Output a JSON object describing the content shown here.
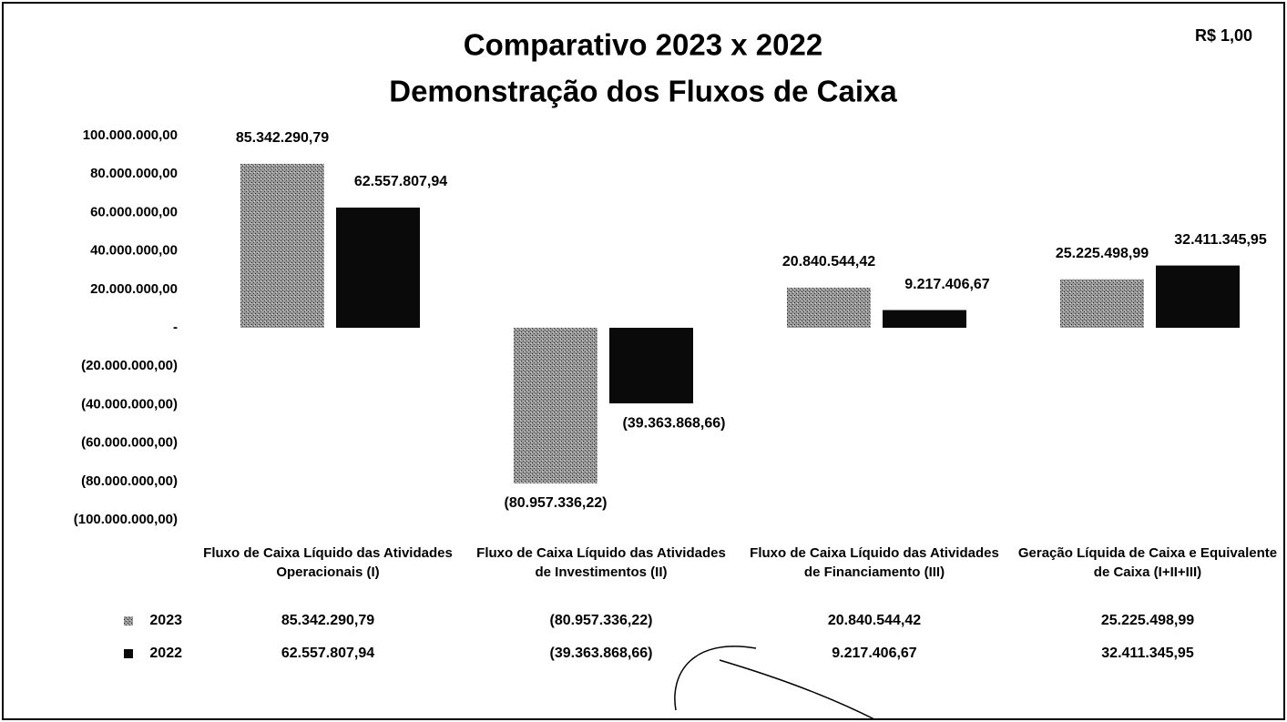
{
  "chart_data": {
    "type": "bar",
    "title": "Comparativo 2023 x 2022",
    "subtitle": "Demonstração dos Fluxos de Caixa",
    "unit_note": "R$ 1,00",
    "categories": [
      "Fluxo de Caixa Líquido das Atividades Operacionais (I)",
      "Fluxo de Caixa Líquido das Atividades de Investimentos (II)",
      "Fluxo de Caixa Líquido das Atividades de Financiamento (III)",
      "Geração Líquida de Caixa e Equivalente de Caixa (I+II+III)"
    ],
    "series": [
      {
        "name": "2023",
        "color": "#7a7a7a",
        "values": [
          85342290.79,
          -80957336.22,
          20840544.42,
          25225498.99
        ],
        "value_labels": [
          "85.342.290,79",
          "(80.957.336,22)",
          "20.840.544,42",
          "25.225.498,99"
        ]
      },
      {
        "name": "2022",
        "color": "#0a0a0a",
        "values": [
          62557807.94,
          -39363868.66,
          9217406.67,
          32411345.95
        ],
        "value_labels": [
          "62.557.807,94",
          "(39.363.868,66)",
          "9.217.406,67",
          "32.411.345,95"
        ]
      }
    ],
    "ylim": [
      -100000000,
      100000000
    ],
    "yticks": [
      {
        "value": 100000000,
        "label": "100.000.000,00"
      },
      {
        "value": 80000000,
        "label": "80.000.000,00"
      },
      {
        "value": 60000000,
        "label": "60.000.000,00"
      },
      {
        "value": 40000000,
        "label": "40.000.000,00"
      },
      {
        "value": 20000000,
        "label": "20.000.000,00"
      },
      {
        "value": 0,
        "label": "-"
      },
      {
        "value": -20000000,
        "label": "(20.000.000,00)"
      },
      {
        "value": -40000000,
        "label": "(40.000.000,00)"
      },
      {
        "value": -60000000,
        "label": "(60.000.000,00)"
      },
      {
        "value": -80000000,
        "label": "(80.000.000,00)"
      },
      {
        "value": -100000000,
        "label": "(100.000.000,00)"
      }
    ],
    "grid": false,
    "data_table": true
  }
}
